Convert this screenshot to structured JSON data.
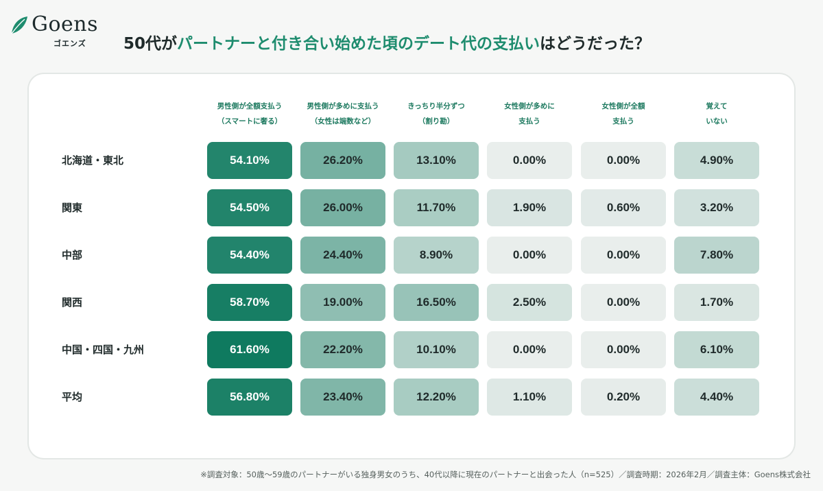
{
  "brand": {
    "name": "Goens",
    "kana": "ゴエンズ",
    "color": "#1e8c6e"
  },
  "title": {
    "prefix": "50代が",
    "accent": "パートナーと付き合い始めた頃のデート代の支払い",
    "suffix": "はどうだった？"
  },
  "chart_data": {
    "type": "table",
    "columns": [
      [
        "男性側が全額支払う",
        "（スマートに奢る）"
      ],
      [
        "男性側が多めに支払う",
        "（女性は端数など）"
      ],
      [
        "きっちり半分ずつ",
        "（割り勘）"
      ],
      [
        "女性側が多めに",
        "支払う"
      ],
      [
        "女性側が全額",
        "支払う"
      ],
      [
        "覚えて",
        "いない"
      ]
    ],
    "rows": [
      {
        "label": "北海道・東北",
        "values": [
          54.1,
          26.2,
          13.1,
          0.0,
          0.0,
          4.9
        ]
      },
      {
        "label": "関東",
        "values": [
          54.5,
          26.0,
          11.7,
          1.9,
          0.6,
          3.2
        ]
      },
      {
        "label": "中部",
        "values": [
          54.4,
          24.4,
          8.9,
          0.0,
          0.0,
          7.8
        ]
      },
      {
        "label": "関西",
        "values": [
          58.7,
          19.0,
          16.5,
          2.5,
          0.0,
          1.7
        ]
      },
      {
        "label": "中国・四国・九州",
        "values": [
          61.6,
          22.2,
          10.1,
          0.0,
          0.0,
          6.1
        ]
      },
      {
        "label": "平均",
        "values": [
          56.8,
          23.4,
          12.2,
          1.1,
          0.2,
          4.4
        ]
      }
    ],
    "value_suffix": "%",
    "color_scale": {
      "low": "#e9eeec",
      "high": "#0f7a5f"
    }
  },
  "footnote": "※調査対象：50歳〜59歳のパートナーがいる独身男女のうち、40代以降に現在のパートナーと出会った人（n=525）／調査時期：2026年2月／調査主体：Goens株式会社"
}
